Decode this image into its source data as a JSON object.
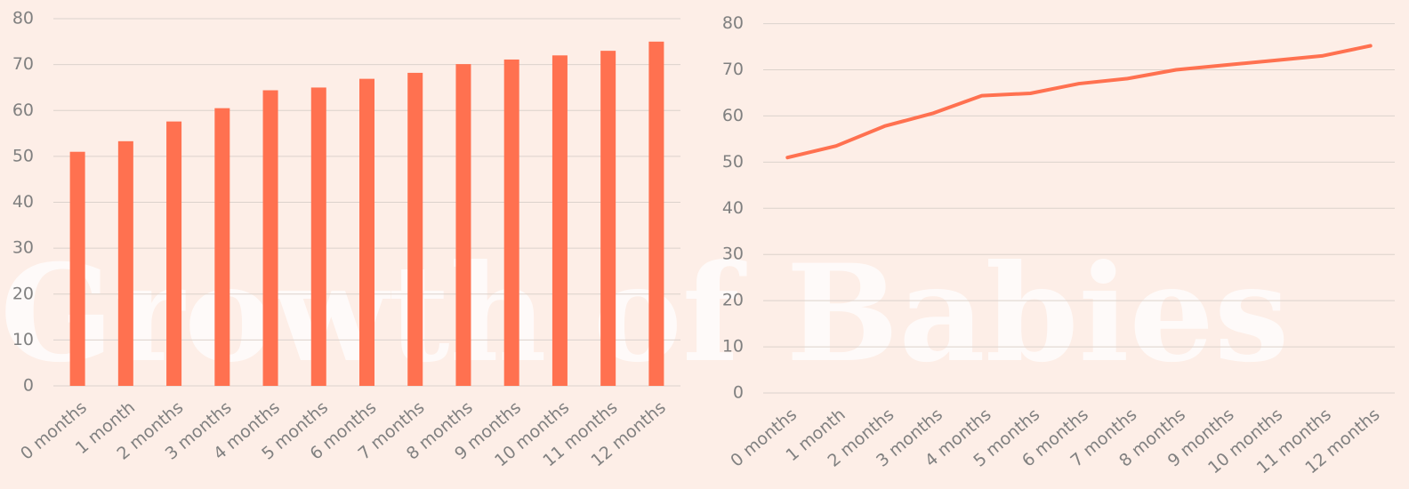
{
  "watermark": "Growth of Babies",
  "chart_data": [
    {
      "type": "bar",
      "color": "#ff7150",
      "grid": true,
      "categories": [
        "0 months",
        "1 month",
        "2 months",
        "3 months",
        "4 months",
        "5 months",
        "6 months",
        "7 months",
        "8 months",
        "9 months",
        "10 months",
        "11 months",
        "12 months"
      ],
      "values": [
        51,
        53.3,
        57.6,
        60.5,
        64.4,
        65,
        66.9,
        68.2,
        70.1,
        71.1,
        72,
        73,
        75
      ],
      "ylim": [
        0,
        80
      ],
      "yticks": [
        0,
        10,
        20,
        30,
        40,
        50,
        60,
        70,
        80
      ]
    },
    {
      "type": "line",
      "color": "#ff7150",
      "grid": true,
      "categories": [
        "0 months",
        "1 month",
        "2 months",
        "3 months",
        "4 months",
        "5 months",
        "6 months",
        "7 months",
        "8 months",
        "9 months",
        "10 months",
        "11 months",
        "12 months"
      ],
      "values": [
        51,
        53.5,
        57.8,
        60.6,
        64.4,
        64.9,
        67,
        68.1,
        70,
        71,
        72,
        73,
        75.2
      ],
      "ylim": [
        0,
        85
      ],
      "yticks": [
        0,
        10,
        20,
        30,
        40,
        50,
        60,
        70,
        80
      ]
    }
  ]
}
